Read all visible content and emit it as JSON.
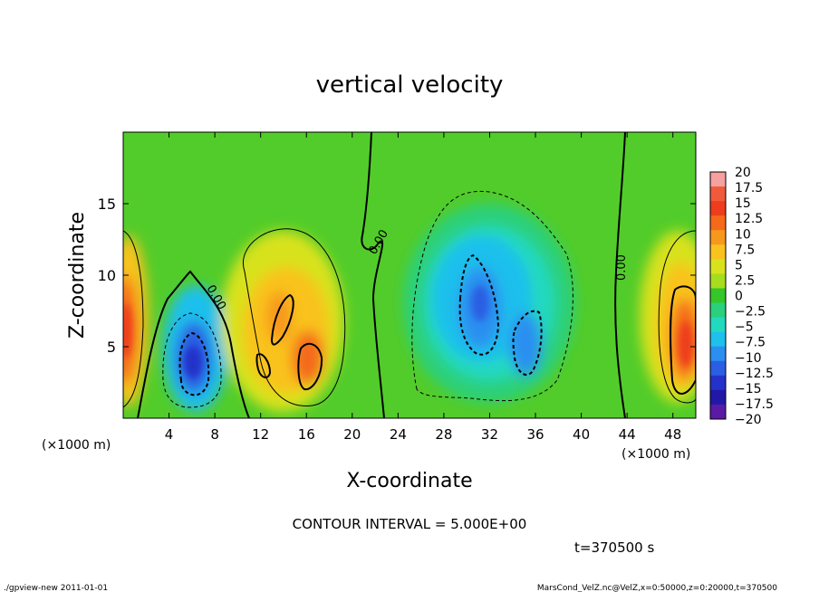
{
  "chart_data": {
    "type": "heatmap",
    "title": "vertical velocity",
    "xlabel": "X-coordinate",
    "ylabel": "Z-coordinate",
    "x_unit": "(×1000 m)",
    "y_unit": "(×1000 m)",
    "xlim": [
      0,
      50
    ],
    "ylim": [
      0,
      20
    ],
    "x_ticks": [
      4,
      8,
      12,
      16,
      20,
      24,
      28,
      32,
      36,
      40,
      44,
      48
    ],
    "y_ticks": [
      5,
      10,
      15
    ],
    "colorbar": {
      "levels": [
        20,
        17.5,
        15,
        12.5,
        10,
        7.5,
        5,
        2.5,
        0,
        -2.5,
        -5,
        -7.5,
        -10,
        -12.5,
        -15,
        -17.5,
        -20
      ],
      "labels": [
        "20",
        "17.5",
        "15",
        "12.5",
        "10",
        "7.5",
        "5",
        "2.5",
        "0",
        "−2.5",
        "−5",
        "−7.5",
        "−10",
        "−12.5",
        "−15",
        "−17.5",
        "−20"
      ],
      "colors": [
        "#f6a0a0",
        "#f05a3a",
        "#ee3d1c",
        "#f46a1a",
        "#f7981d",
        "#f9c21f",
        "#d8e21c",
        "#a6dd1e",
        "#35c62a",
        "#2bd07c",
        "#22d9c0",
        "#1fc0ec",
        "#2a8ff0",
        "#2a5fe3",
        "#2432c9",
        "#2118a8",
        "#5a1aa6"
      ]
    },
    "features": [
      {
        "kind": "updraft",
        "x": 1,
        "z": 6,
        "peak": 12
      },
      {
        "kind": "downdraft",
        "x": 6.5,
        "z": 4,
        "peak": -15
      },
      {
        "kind": "updraft",
        "x": 14,
        "z": 6.5,
        "peak": 14
      },
      {
        "kind": "downdraft",
        "x": 31,
        "z": 8,
        "peak": -12
      },
      {
        "kind": "downdraft",
        "x": 35,
        "z": 5.5,
        "peak": -10
      },
      {
        "kind": "updraft",
        "x": 48.5,
        "z": 5.5,
        "peak": 13
      }
    ],
    "contour_labels": [
      "0.00",
      "0.00",
      "0.00"
    ],
    "contour_interval_text": "CONTOUR INTERVAL = 5.000E+00",
    "time_text": "t=370500 s"
  },
  "footer": {
    "left": "./gpview-new  2011-01-01",
    "right": "MarsCond_VelZ.nc@VelZ,x=0:50000,z=0:20000,t=370500"
  }
}
